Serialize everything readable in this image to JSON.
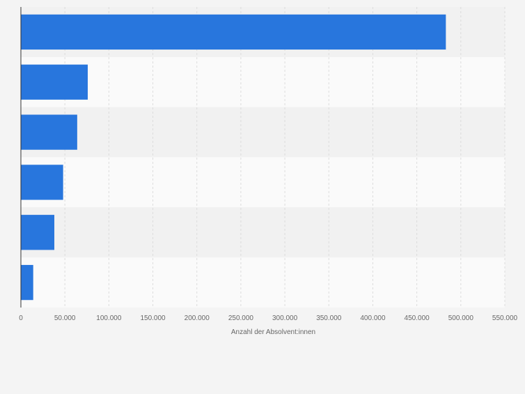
{
  "chart_data": {
    "type": "bar",
    "orientation": "horizontal",
    "title": "",
    "xlabel": "Anzahl der Absolvent:innen",
    "ylabel": "",
    "categories": [
      "",
      "",
      "",
      "",
      "",
      ""
    ],
    "values": [
      483000,
      76000,
      64000,
      48000,
      38000,
      14000
    ],
    "xlim": [
      0,
      550000
    ],
    "xticks": [
      0,
      50000,
      100000,
      150000,
      200000,
      250000,
      300000,
      350000,
      400000,
      450000,
      500000,
      550000
    ],
    "xtick_labels": [
      "0",
      "50.000",
      "100.000",
      "150.000",
      "200.000",
      "250.000",
      "300.000",
      "350.000",
      "400.000",
      "450.000",
      "500.000",
      "550.000"
    ],
    "grid": true,
    "legend": "none",
    "colors": {
      "bar": "#2876dd",
      "band_dark": "#f1f1f1",
      "band_light": "#fafafa",
      "grid": "#dcdcdc",
      "axis": "#333333",
      "text": "#666666",
      "background": "#f4f4f4"
    }
  }
}
